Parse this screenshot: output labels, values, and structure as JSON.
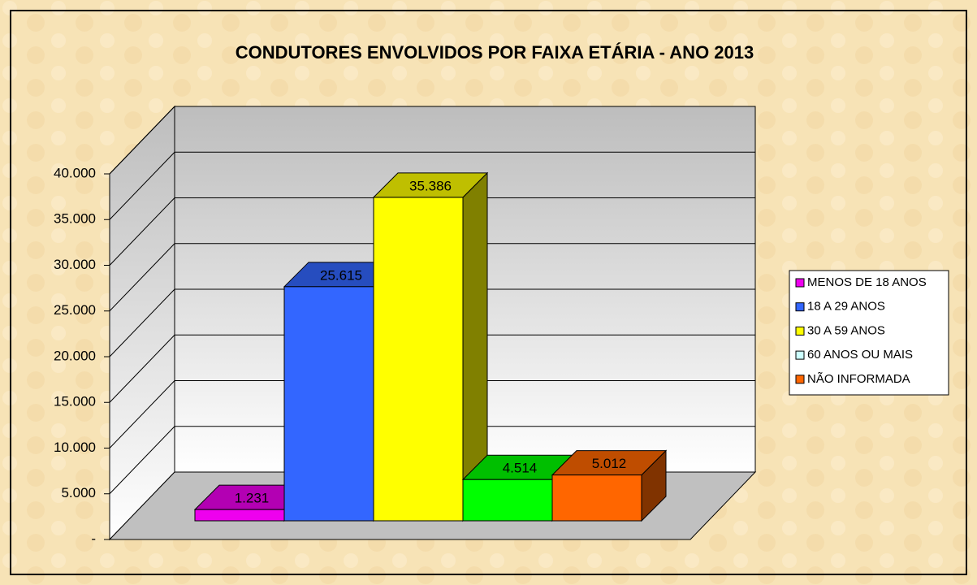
{
  "chart_data": {
    "type": "bar3d",
    "title": "CONDUTORES ENVOLVIDOS POR FAIXA ETÁRIA - ANO 2013",
    "series": [
      {
        "name": "MENOS DE 18 ANOS",
        "color": "#ee00ee",
        "values": [
          1231
        ],
        "value_labels": [
          "1.231"
        ]
      },
      {
        "name": "18 A 29 ANOS",
        "color": "#3366ff",
        "values": [
          25615
        ],
        "value_labels": [
          "25.615"
        ]
      },
      {
        "name": "30 A 59 ANOS",
        "color": "#ffff00",
        "values": [
          35386
        ],
        "value_labels": [
          "35.386"
        ]
      },
      {
        "name": "60 ANOS OU MAIS",
        "color": "#00ff00",
        "legend_color": "#ccffff",
        "values": [
          4514
        ],
        "value_labels": [
          "4.514"
        ]
      },
      {
        "name": "NÃO INFORMADA",
        "color": "#ff6600",
        "values": [
          5012
        ],
        "value_labels": [
          "5.012"
        ]
      }
    ],
    "ylim": [
      0,
      40000
    ],
    "yticks": [
      {
        "value": 0,
        "label": "-"
      },
      {
        "value": 5000,
        "label": "5.000"
      },
      {
        "value": 10000,
        "label": "10.000"
      },
      {
        "value": 15000,
        "label": "15.000"
      },
      {
        "value": 20000,
        "label": "20.000"
      },
      {
        "value": 25000,
        "label": "25.000"
      },
      {
        "value": 30000,
        "label": "30.000"
      },
      {
        "value": 35000,
        "label": "35.000"
      },
      {
        "value": 40000,
        "label": "40.000"
      }
    ],
    "grid": true,
    "legend": "right"
  }
}
